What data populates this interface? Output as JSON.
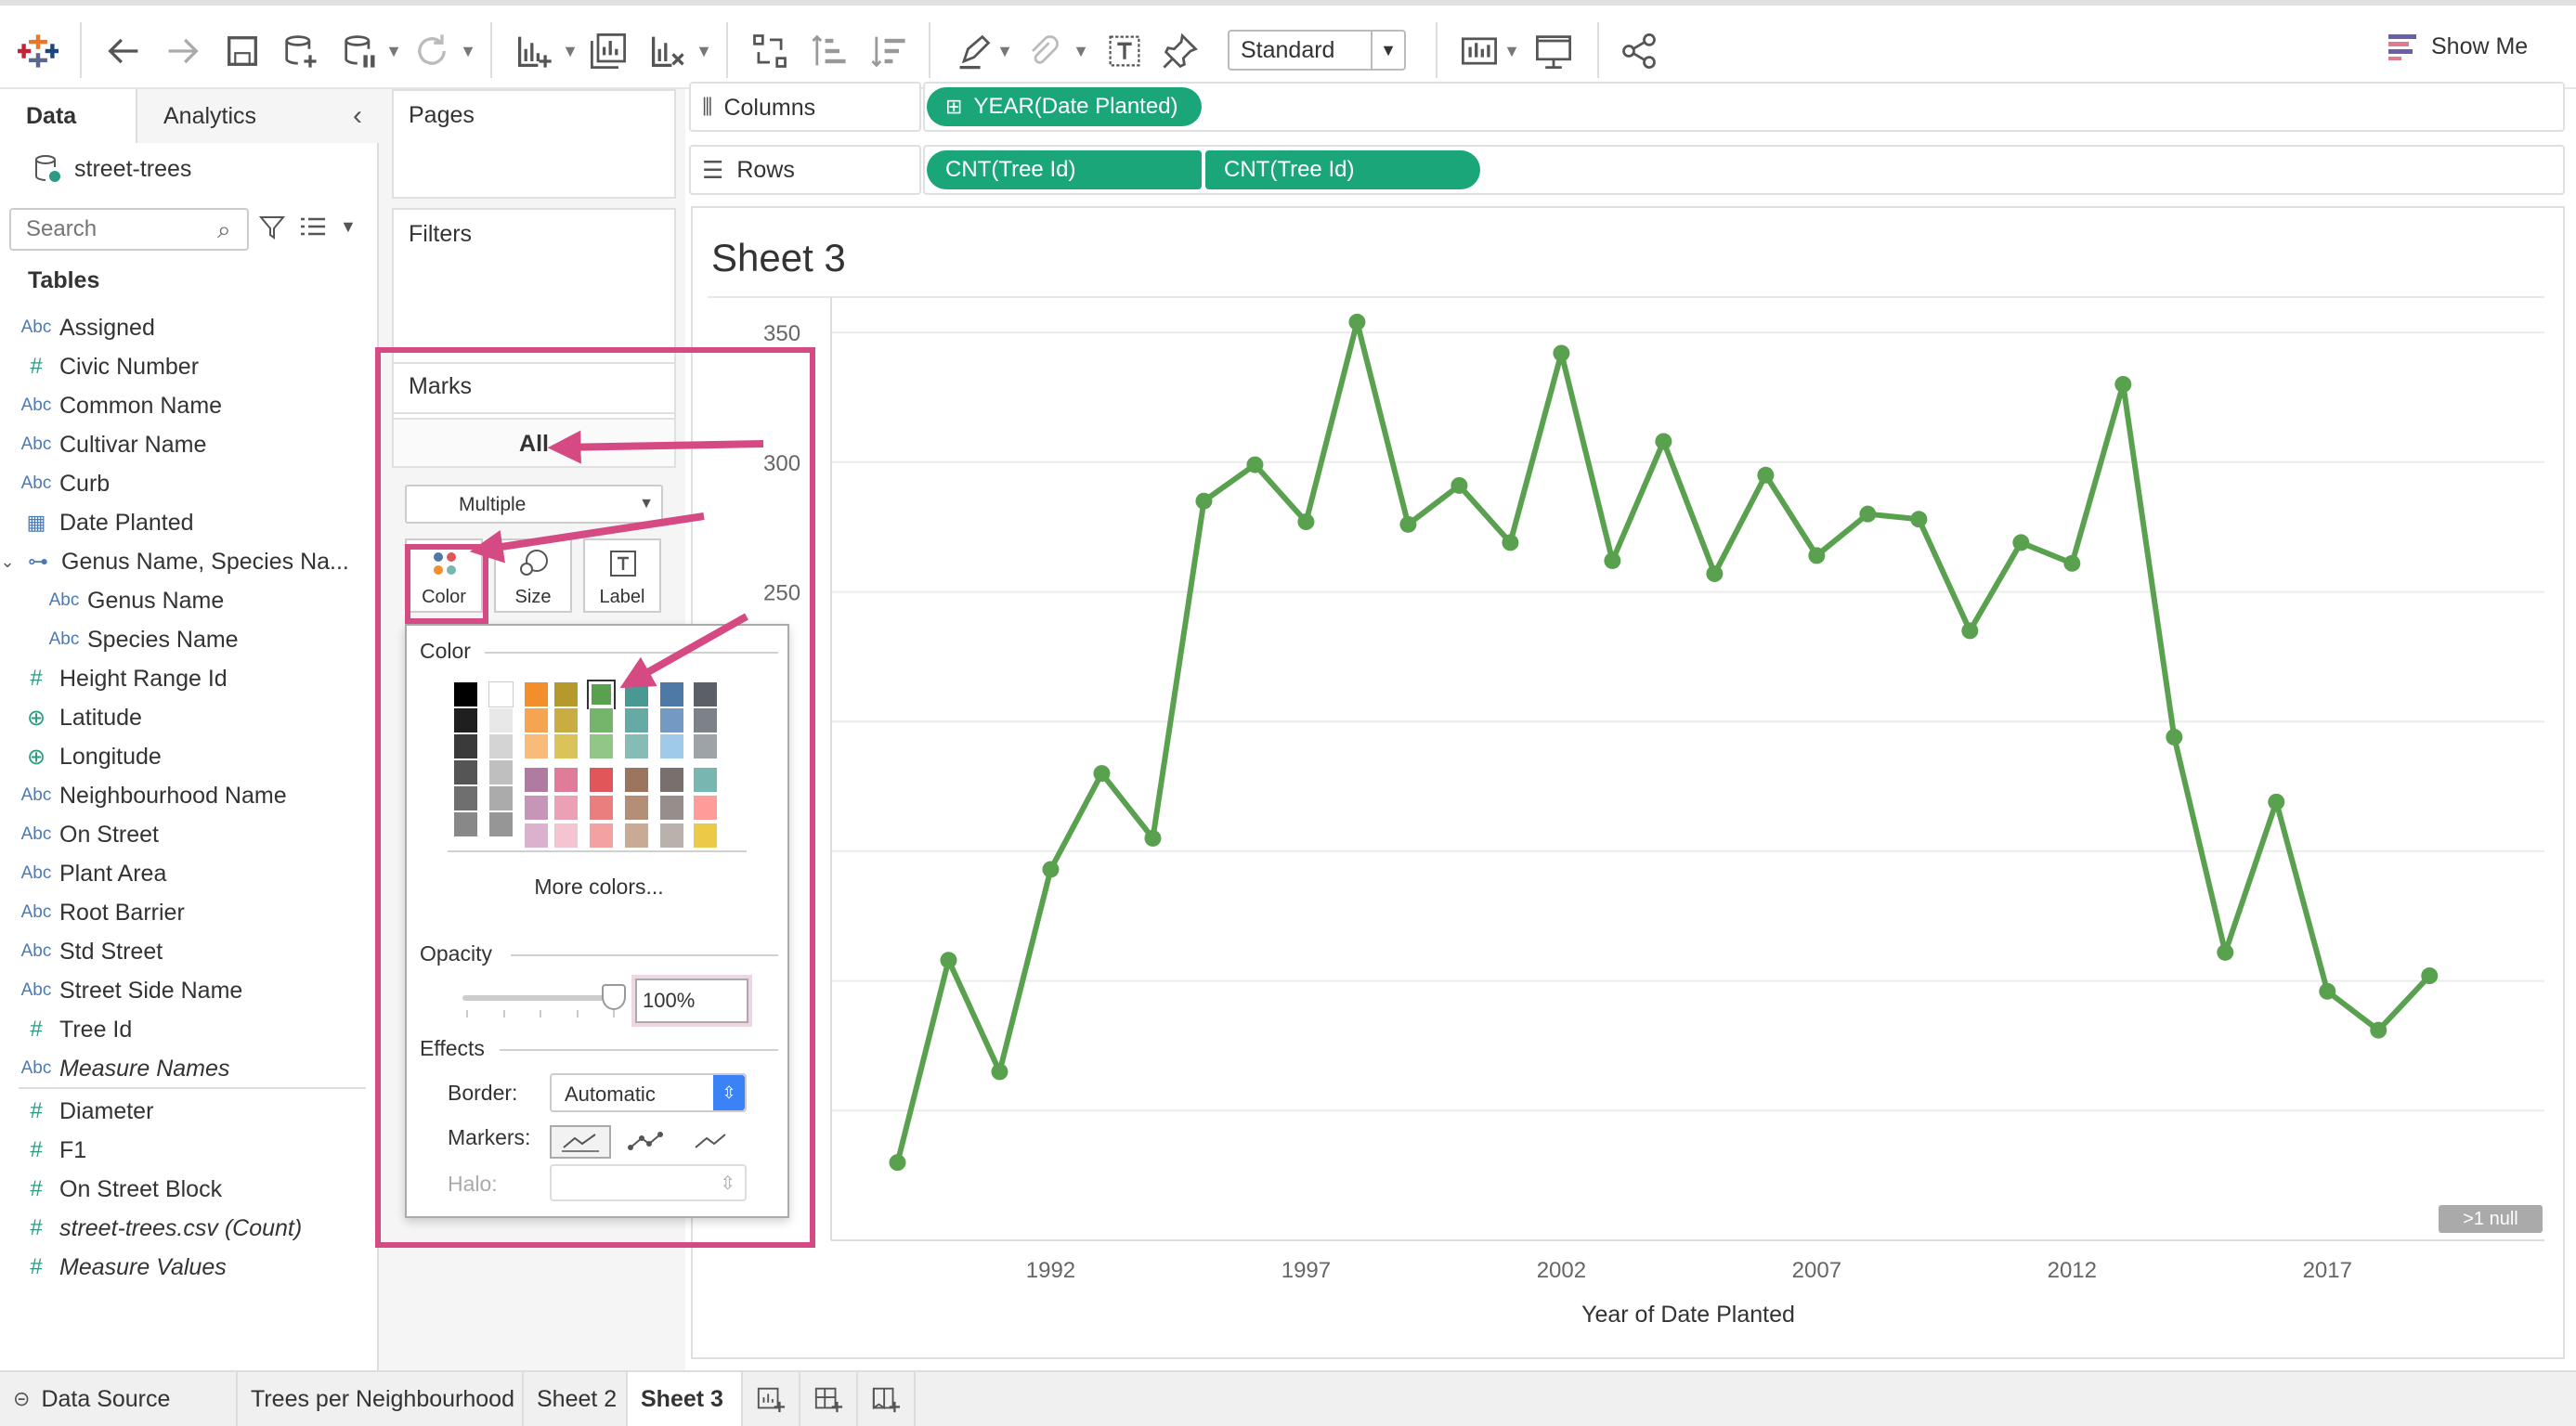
{
  "toolbar": {
    "standard_label": "Standard",
    "show_me_label": "Show Me"
  },
  "left_panel": {
    "tabs": [
      {
        "label": "Data"
      },
      {
        "label": "Analytics"
      }
    ],
    "datasource_name": "street-trees",
    "search_placeholder": "Search",
    "tables_heading": "Tables",
    "fields": [
      {
        "icon": "Abc",
        "name": "Assigned"
      },
      {
        "icon": "#",
        "name": "Civic Number"
      },
      {
        "icon": "Abc",
        "name": "Common Name"
      },
      {
        "icon": "Abc",
        "name": "Cultivar Name"
      },
      {
        "icon": "Abc",
        "name": "Curb"
      },
      {
        "icon": "calendar-icon",
        "name": "Date Planted"
      },
      {
        "icon": "hierarchy-icon",
        "name": "Genus Name, Species Na..."
      },
      {
        "icon": "Abc",
        "name": "Genus Name"
      },
      {
        "icon": "Abc",
        "name": "Species Name"
      },
      {
        "icon": "#",
        "name": "Height Range Id"
      },
      {
        "icon": "globe-icon",
        "name": "Latitude"
      },
      {
        "icon": "globe-icon",
        "name": "Longitude"
      },
      {
        "icon": "Abc",
        "name": "Neighbourhood Name"
      },
      {
        "icon": "Abc",
        "name": "On Street"
      },
      {
        "icon": "Abc",
        "name": "Plant Area"
      },
      {
        "icon": "Abc",
        "name": "Root Barrier"
      },
      {
        "icon": "Abc",
        "name": "Std Street"
      },
      {
        "icon": "Abc",
        "name": "Street Side Name"
      },
      {
        "icon": "#",
        "name": "Tree Id"
      },
      {
        "icon": "Abc",
        "name": "Measure Names"
      },
      {
        "icon": "#",
        "name": "Diameter"
      },
      {
        "icon": "#",
        "name": "F1"
      },
      {
        "icon": "#",
        "name": "On Street Block"
      },
      {
        "icon": "#",
        "name": "street-trees.csv (Count)"
      },
      {
        "icon": "#",
        "name": "Measure Values"
      }
    ]
  },
  "cards": {
    "pages": "Pages",
    "filters": "Filters",
    "marks": "Marks",
    "marks_all": "All",
    "mark_type": "Multiple",
    "mark_buttons": [
      "Color",
      "Size",
      "Label"
    ]
  },
  "shelves": {
    "columns_label": "Columns",
    "rows_label": "Rows",
    "columns_pills": [
      "YEAR(Date Planted)"
    ],
    "rows_pills": [
      "CNT(Tree Id)",
      "CNT(Tree Id)"
    ]
  },
  "color_popup": {
    "color_heading": "Color",
    "more_colors": "More colors...",
    "opacity_heading": "Opacity",
    "opacity_value": "100%",
    "effects_heading": "Effects",
    "border_label": "Border:",
    "border_value": "Automatic",
    "markers_label": "Markers:",
    "halo_label": "Halo:",
    "palette_columns": [
      [
        "#000000",
        "#1f1f1f",
        "#3a3a3a",
        "#555555",
        "#6f6f6f",
        "#888888"
      ],
      [
        "#ffffff",
        "#e8e8e8",
        "#d4d4d4",
        "#bfbfbf",
        "#ababab",
        "#969696"
      ],
      [
        "#f28e2b",
        "#f5a552",
        "#f9bb79",
        "#b07aa1",
        "#c795b8",
        "#dcb0cf"
      ],
      [
        "#b6992d",
        "#c9ac42",
        "#dbc35a",
        "#e07c9a",
        "#eba0b6",
        "#f5c4d2"
      ],
      [
        "#59a14f",
        "#75b46b",
        "#92c687",
        "#e15759",
        "#ea7d7d",
        "#f3a2a1"
      ],
      [
        "#499894",
        "#66aaa5",
        "#86bcb6",
        "#9c755f",
        "#b38f78",
        "#c9aa94"
      ],
      [
        "#4e79a7",
        "#729ac2",
        "#a0cbe8",
        "#79706e",
        "#978d8a",
        "#bab0ac"
      ],
      [
        "#5a6065",
        "#7c8287",
        "#9ea3a7",
        "#76b7b2",
        "#ff9d9a",
        "#edc948"
      ]
    ],
    "selected_color": "#59a14f"
  },
  "view": {
    "sheet_title": "Sheet 3",
    "null_badge": ">1 null"
  },
  "chart_data": {
    "type": "line",
    "xlabel": "Year of Date Planted",
    "x_tick_labels": [
      "1992",
      "1997",
      "2002",
      "2007",
      "2012",
      "2017"
    ],
    "y_tick_labels_visible": [
      "350",
      "300",
      "250"
    ],
    "line_color": "#59a14f",
    "ylim": [
      0,
      3600
    ],
    "x": [
      1989,
      1990,
      1991,
      1992,
      1993,
      1994,
      1995,
      1996,
      1997,
      1998,
      1999,
      2000,
      2001,
      2002,
      2003,
      2004,
      2005,
      2006,
      2007,
      2008,
      2009,
      2010,
      2011,
      2012,
      2013,
      2014,
      2015,
      2016,
      2017,
      2018,
      2019
    ],
    "values": [
      300,
      1080,
      650,
      1430,
      1800,
      1550,
      2850,
      2990,
      2770,
      3540,
      2760,
      2910,
      2690,
      3420,
      2620,
      3080,
      2570,
      2950,
      2640,
      2800,
      2780,
      2350,
      2690,
      2610,
      3300,
      1940,
      1110,
      1690,
      960,
      810,
      1020
    ]
  },
  "bottom_tabs": {
    "data_source": "Data Source",
    "sheets": [
      "Trees per Neighbourhood",
      "Sheet 2",
      "Sheet 3"
    ]
  }
}
